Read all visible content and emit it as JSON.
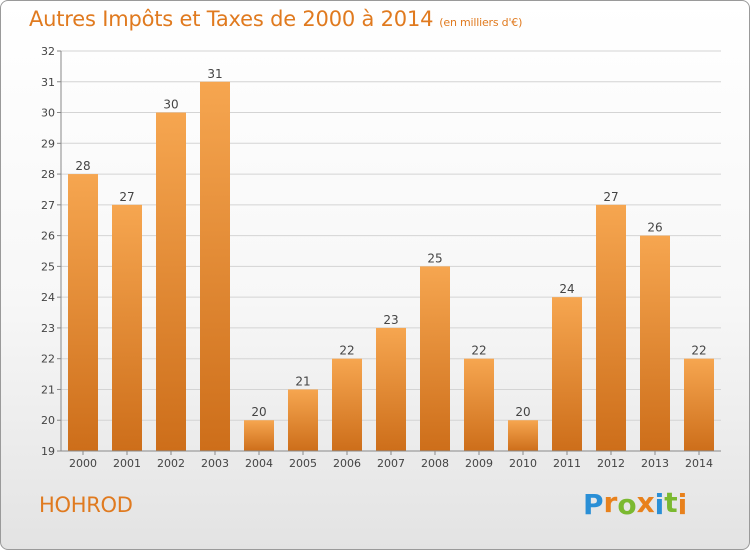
{
  "title": "Autres Impôts et Taxes de 2000 à 2014",
  "title_unit": "(en milliers d'€)",
  "town": "HOHROD",
  "logo": {
    "letters": [
      {
        "ch": "P",
        "color": "#2a8fd6"
      },
      {
        "ch": "r",
        "color": "#e8811c"
      },
      {
        "ch": "o",
        "color": "#7bb930"
      },
      {
        "ch": "x",
        "color": "#e8811c"
      },
      {
        "ch": "i",
        "color": "#2a8fd6"
      },
      {
        "ch": "t",
        "color": "#7bb930"
      },
      {
        "ch": "i",
        "color": "#e8811c"
      }
    ]
  },
  "colors": {
    "accent": "#e07a1f",
    "bar_top": "#f6a650",
    "bar_bottom": "#cd6e1a",
    "grid": "#d4d4d4",
    "axis": "#888888",
    "label": "#444444"
  },
  "chart_data": {
    "type": "bar",
    "categories": [
      "2000",
      "2001",
      "2002",
      "2003",
      "2004",
      "2005",
      "2006",
      "2007",
      "2008",
      "2009",
      "2010",
      "2011",
      "2012",
      "2013",
      "2014"
    ],
    "values": [
      28,
      27,
      30,
      31,
      20,
      21,
      22,
      23,
      25,
      22,
      20,
      24,
      27,
      26,
      22
    ],
    "ylim": [
      19,
      32
    ],
    "yticks": [
      19,
      20,
      21,
      22,
      23,
      24,
      25,
      26,
      27,
      28,
      29,
      30,
      31,
      32
    ],
    "grid": true,
    "data_labels": true,
    "title": "Autres Impôts et Taxes de 2000 à 2014",
    "xlabel": "",
    "ylabel": ""
  }
}
